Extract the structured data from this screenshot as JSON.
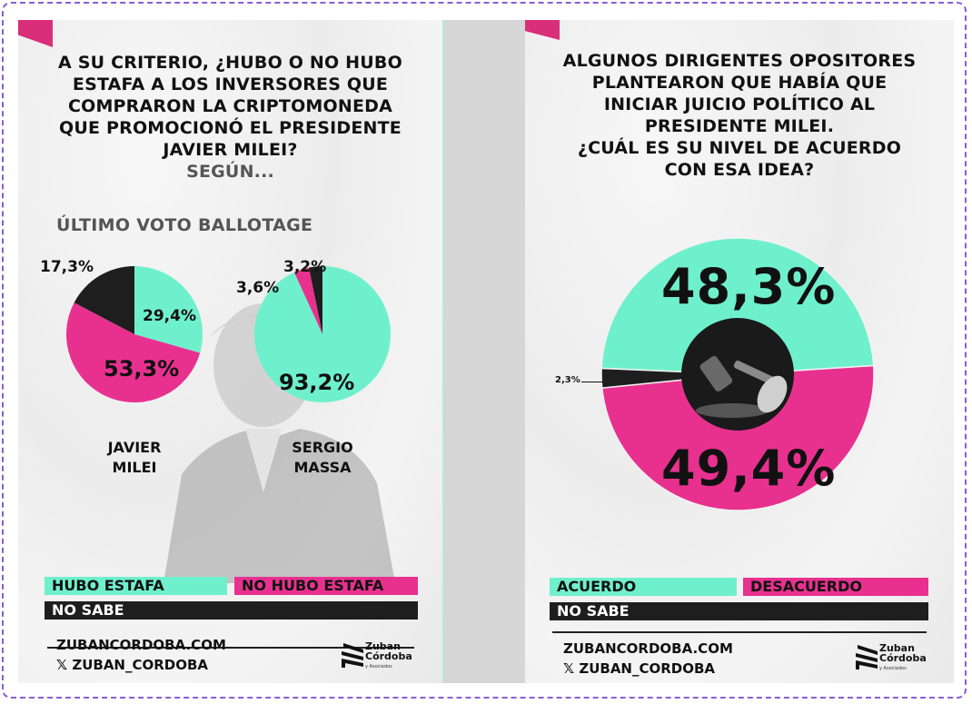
{
  "left_panel": {
    "title_lines": [
      "A SU CRITERIO, ¿HUBO O NO HUBO",
      "ESTAFA A LOS INVERSORES QUE",
      "COMPRARON LA CRIPTOMONEDA",
      "QUE PROMOCIONÓ EL PRESIDENTE",
      "JAVIER MILEI?"
    ],
    "subtitle": "SEGÚN...",
    "section_label": "ÚLTIMO VOTO BALLOTAGE",
    "candidates": [
      {
        "name_line1": "JAVIER",
        "name_line2": "MILEI",
        "hubo": "29,4%",
        "no_hubo": "53,3%",
        "no_sabe": "17,3%"
      },
      {
        "name_line1": "SERGIO",
        "name_line2": "MASSA",
        "hubo": "93,2%",
        "no_hubo": "3,6%",
        "no_sabe": "3,2%"
      }
    ],
    "legend": {
      "teal": "HUBO ESTAFA",
      "pink": "NO HUBO ESTAFA",
      "black": "NO SABE"
    },
    "footer": {
      "website": "ZUBANCORDOBA.COM",
      "x_handle": "ZUBAN_CORDOBA",
      "x_icon": "𝕏"
    },
    "logo": {
      "line1": "Zuban",
      "line2": "Córdoba",
      "line3": "y Asociados"
    }
  },
  "right_panel": {
    "title_lines": [
      "ALGUNOS DIRIGENTES OPOSITORES",
      "PLANTEARON QUE HABÍA QUE",
      "INICIAR JUICIO POLÍTICO AL",
      "PRESIDENTE MILEI.",
      "¿CUÁL ES SU NIVEL DE ACUERDO",
      "CON ESA IDEA?"
    ],
    "values": {
      "acuerdo": "48,3%",
      "desacuerdo": "49,4%",
      "no_sabe": "2,3%"
    },
    "legend": {
      "teal": "ACUERDO",
      "pink": "DESACUERDO",
      "black": "NO SABE"
    },
    "footer": {
      "website": "ZUBANCORDOBA.COM",
      "x_handle": "ZUBAN_CORDOBA",
      "x_icon": "𝕏"
    },
    "logo": {
      "line1": "Zuban",
      "line2": "Córdoba",
      "line3": "y Asociados"
    },
    "center_icon": "gavel-icon"
  },
  "colors": {
    "teal": "#6ff0cc",
    "pink": "#e8318f",
    "black": "#1e1e1e",
    "flag": "#d92f7a",
    "gap": "#d6d6d6"
  },
  "chart_data": [
    {
      "type": "pie",
      "title": "A su criterio, ¿hubo o no hubo estafa a los inversores que compraron la criptomoneda que promocionó el presidente Javier Milei? Según último voto ballotage — Javier Milei",
      "categories": [
        "Hubo estafa",
        "No hubo estafa",
        "No sabe"
      ],
      "values": [
        29.4,
        53.3,
        17.3
      ],
      "colors": [
        "#6ff0cc",
        "#e8318f",
        "#1e1e1e"
      ],
      "legend_position": "bottom"
    },
    {
      "type": "pie",
      "title": "A su criterio, ¿hubo o no hubo estafa...? Según último voto ballotage — Sergio Massa",
      "categories": [
        "Hubo estafa",
        "No hubo estafa",
        "No sabe"
      ],
      "values": [
        93.2,
        3.6,
        3.2
      ],
      "colors": [
        "#6ff0cc",
        "#e8318f",
        "#1e1e1e"
      ],
      "legend_position": "bottom"
    },
    {
      "type": "pie",
      "subtype": "donut",
      "title": "Algunos dirigentes opositores plantearon que había que iniciar juicio político al presidente Milei. ¿Cuál es su nivel de acuerdo con esa idea?",
      "categories": [
        "Acuerdo",
        "Desacuerdo",
        "No sabe"
      ],
      "values": [
        48.3,
        49.4,
        2.3
      ],
      "colors": [
        "#6ff0cc",
        "#e8318f",
        "#1e1e1e"
      ],
      "legend_position": "bottom"
    }
  ]
}
